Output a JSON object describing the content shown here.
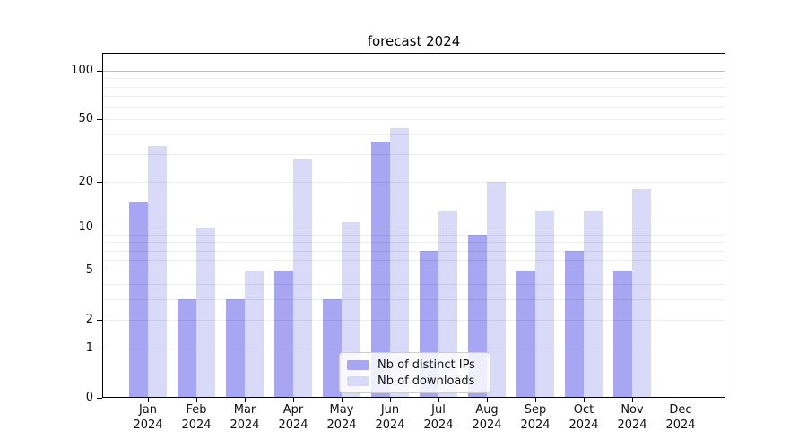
{
  "title": "forecast 2024",
  "legend": {
    "items": [
      {
        "label": "Nb of distinct IPs",
        "color": "#a6a6f2"
      },
      {
        "label": "Nb of downloads",
        "color": "#d9d9f8"
      }
    ]
  },
  "chart_data": {
    "type": "bar",
    "title": "forecast 2024",
    "xlabel": "",
    "ylabel": "",
    "yscale": "log10(value+1)",
    "ylim": [
      0,
      130
    ],
    "grid": true,
    "legend_position": "lower center (inside plot)",
    "categories": [
      "Jan 2024",
      "Feb 2024",
      "Mar 2024",
      "Apr 2024",
      "May 2024",
      "Jun 2024",
      "Jul 2024",
      "Aug 2024",
      "Sep 2024",
      "Oct 2024",
      "Nov 2024",
      "Dec 2024"
    ],
    "series": [
      {
        "name": "Nb of distinct IPs",
        "color": "#a6a6f2",
        "values": [
          15,
          3,
          3,
          5,
          3,
          36,
          7,
          9,
          5,
          7,
          5,
          0
        ]
      },
      {
        "name": "Nb of downloads",
        "color": "#d9d9f8",
        "values": [
          34,
          10,
          5,
          28,
          11,
          44,
          13,
          20,
          13,
          13,
          18,
          0
        ]
      }
    ],
    "yticks": [
      0,
      1,
      2,
      5,
      10,
      20,
      50,
      100
    ],
    "gridlines": {
      "major": [
        1,
        10,
        100
      ],
      "minor": [
        2,
        3,
        4,
        5,
        6,
        7,
        8,
        9,
        20,
        30,
        40,
        50,
        60,
        70,
        80,
        90
      ]
    }
  }
}
